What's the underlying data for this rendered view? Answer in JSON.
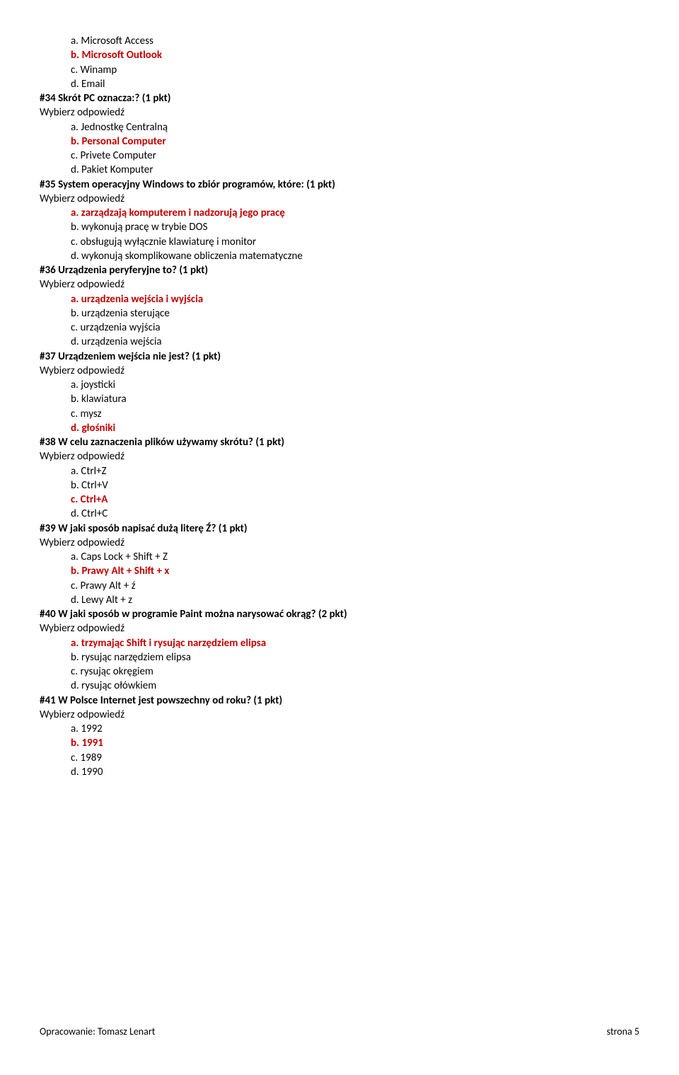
{
  "opts_block1": [
    {
      "txt": "a. Microsoft Access",
      "correct": false
    },
    {
      "txt": "b. Microsoft Outlook",
      "correct": true
    },
    {
      "txt": "c. Winamp",
      "correct": false
    },
    {
      "txt": "d. Email",
      "correct": false
    }
  ],
  "q34": {
    "title": "#34  Skrót PC oznacza:? (1 pkt)",
    "prompt": "Wybierz odpowiedź",
    "opts": [
      {
        "txt": "a. Jednostkę Centralną",
        "correct": false
      },
      {
        "txt": "b. Personal Computer",
        "correct": true
      },
      {
        "txt": "c. Privete Computer",
        "correct": false
      },
      {
        "txt": "d. Pakiet Komputer",
        "correct": false
      }
    ]
  },
  "q35": {
    "title": "#35  System operacyjny Windows to zbiór programów, które: (1 pkt)",
    "prompt": "Wybierz odpowiedź",
    "opts": [
      {
        "txt": "a. zarządzają komputerem i nadzorują jego pracę",
        "correct": true
      },
      {
        "txt": "b. wykonują pracę w trybie DOS",
        "correct": false
      },
      {
        "txt": "c. obsługują wyłącznie klawiaturę i monitor",
        "correct": false
      },
      {
        "txt": "d. wykonują skomplikowane obliczenia matematyczne",
        "correct": false
      }
    ]
  },
  "q36": {
    "title": "#36  Urządzenia peryferyjne to? (1 pkt)",
    "prompt": "Wybierz odpowiedź",
    "opts": [
      {
        "txt": "a. urządzenia wejścia i wyjścia",
        "correct": true
      },
      {
        "txt": "b. urządzenia sterujące",
        "correct": false
      },
      {
        "txt": "c. urządzenia wyjścia",
        "correct": false
      },
      {
        "txt": "d. urządzenia wejścia",
        "correct": false
      }
    ]
  },
  "q37": {
    "title": "#37  Urządzeniem wejścia nie jest? (1 pkt)",
    "prompt": "Wybierz odpowiedź",
    "opts": [
      {
        "txt": "a. joysticki",
        "correct": false
      },
      {
        "txt": "b. klawiatura",
        "correct": false
      },
      {
        "txt": "c. mysz",
        "correct": false
      },
      {
        "txt": "d. głośniki",
        "correct": true
      }
    ]
  },
  "q38": {
    "title": "#38  W celu zaznaczenia plików używamy skrótu? (1 pkt)",
    "prompt": "Wybierz odpowiedź",
    "opts": [
      {
        "txt": "a. Ctrl+Z",
        "correct": false
      },
      {
        "txt": "b. Ctrl+V",
        "correct": false
      },
      {
        "txt": "c. Ctrl+A",
        "correct": true
      },
      {
        "txt": "d. Ctrl+C",
        "correct": false
      }
    ]
  },
  "q39": {
    "title": "#39  W jaki sposób napisać dużą literę Ź? (1 pkt)",
    "prompt": "Wybierz odpowiedź",
    "opts": [
      {
        "txt": "a. Caps Lock + Shift + Z",
        "correct": false
      },
      {
        "txt": "b. Prawy Alt + Shift + x",
        "correct": true
      },
      {
        "txt": "c. Prawy Alt + ź",
        "correct": false
      },
      {
        "txt": "d. Lewy Alt + z",
        "correct": false
      }
    ]
  },
  "q40": {
    "title": "#40  W jaki sposób w programie Paint można narysować okrąg? (2 pkt)",
    "prompt": "Wybierz odpowiedź",
    "opts": [
      {
        "txt": "a. trzymając Shift i rysując narzędziem elipsa",
        "correct": true
      },
      {
        "txt": "b. rysując narzędziem elipsa",
        "correct": false
      },
      {
        "txt": "c. rysując okręgiem",
        "correct": false
      },
      {
        "txt": "d. rysując ołówkiem",
        "correct": false
      }
    ]
  },
  "q41": {
    "title": "#41  W Polsce Internet jest powszechny od roku? (1 pkt)",
    "prompt": "Wybierz odpowiedź",
    "opts": [
      {
        "txt": "a. 1992",
        "correct": false
      },
      {
        "txt": "b. 1991",
        "correct": true
      },
      {
        "txt": "c. 1989",
        "correct": false
      },
      {
        "txt": "d. 1990",
        "correct": false
      }
    ]
  },
  "footer": {
    "left": "Opracowanie: Tomasz Lenart",
    "right": "strona  5"
  }
}
